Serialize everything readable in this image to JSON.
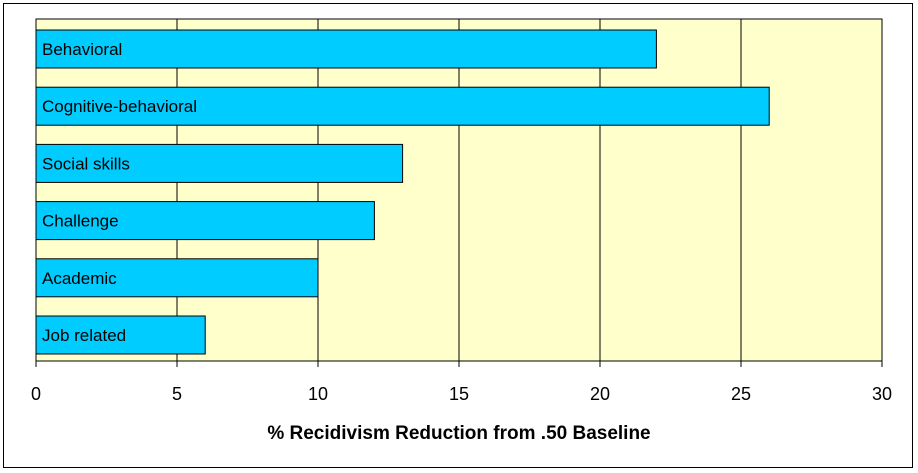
{
  "chart_data": {
    "type": "bar",
    "orientation": "horizontal",
    "categories": [
      "Behavioral",
      "Cognitive-behavioral",
      "Social skills",
      "Challenge",
      "Academic",
      "Job related"
    ],
    "values": [
      22,
      26,
      13,
      12,
      10,
      6
    ],
    "xlabel": "% Recidivism Reduction from .50 Baseline",
    "xlim": [
      0,
      30
    ],
    "xticks": [
      0,
      5,
      10,
      15,
      20,
      25,
      30
    ],
    "grid": "vertical",
    "legend": "none",
    "colors": {
      "bar": "#00ccff",
      "plot_background": "#ffffcc",
      "gridline": "#000000"
    }
  }
}
